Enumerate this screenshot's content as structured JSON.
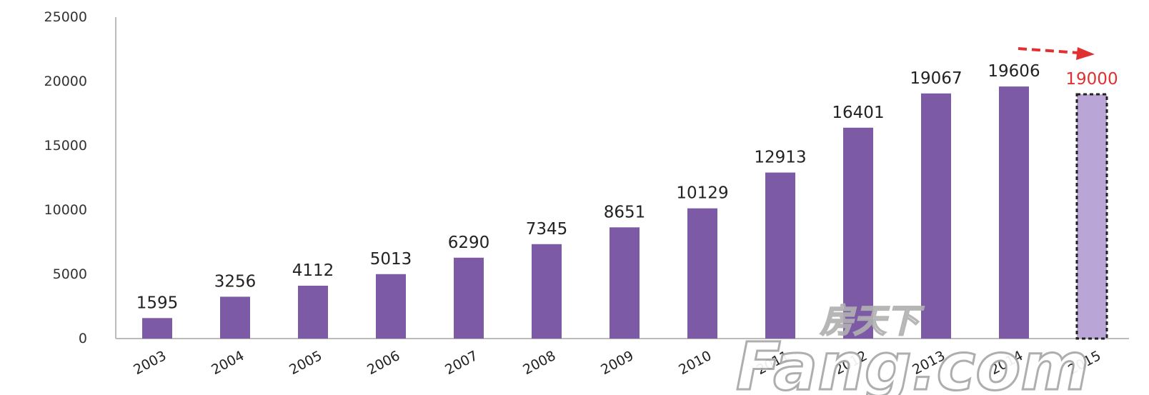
{
  "chart_data": {
    "type": "bar",
    "title": "",
    "xlabel": "",
    "ylabel": "",
    "ylim": [
      0,
      25000
    ],
    "yticks": [
      0,
      5000,
      10000,
      15000,
      20000,
      25000
    ],
    "categories": [
      "2003",
      "2004",
      "2005",
      "2006",
      "2007",
      "2008",
      "2009",
      "2010",
      "2011",
      "2012",
      "2013",
      "2014",
      "2015"
    ],
    "values": [
      1595,
      3256,
      4112,
      5013,
      6290,
      7345,
      8651,
      10129,
      12913,
      16401,
      19067,
      19606,
      19000
    ],
    "value_labels": [
      "1595",
      "3256",
      "4112",
      "5013",
      "6290",
      "7345",
      "8651",
      "10129",
      "12913",
      "16401",
      "19067",
      "19606",
      "19000"
    ],
    "highlighted_index": 12,
    "highlight_note": "last bar is a projection: dashed outline, lighter fill, red label, red dashed arrow above",
    "grid": false,
    "legend": "none",
    "colors": {
      "bar": "#7c5aa6",
      "projected_bar": "#b9a6d6",
      "projected_label": "#e03030",
      "arrow": "#e03030",
      "axis": "#bbbbbb"
    }
  },
  "watermark": {
    "chinese": "房天下",
    "latin": "Fang.com"
  }
}
